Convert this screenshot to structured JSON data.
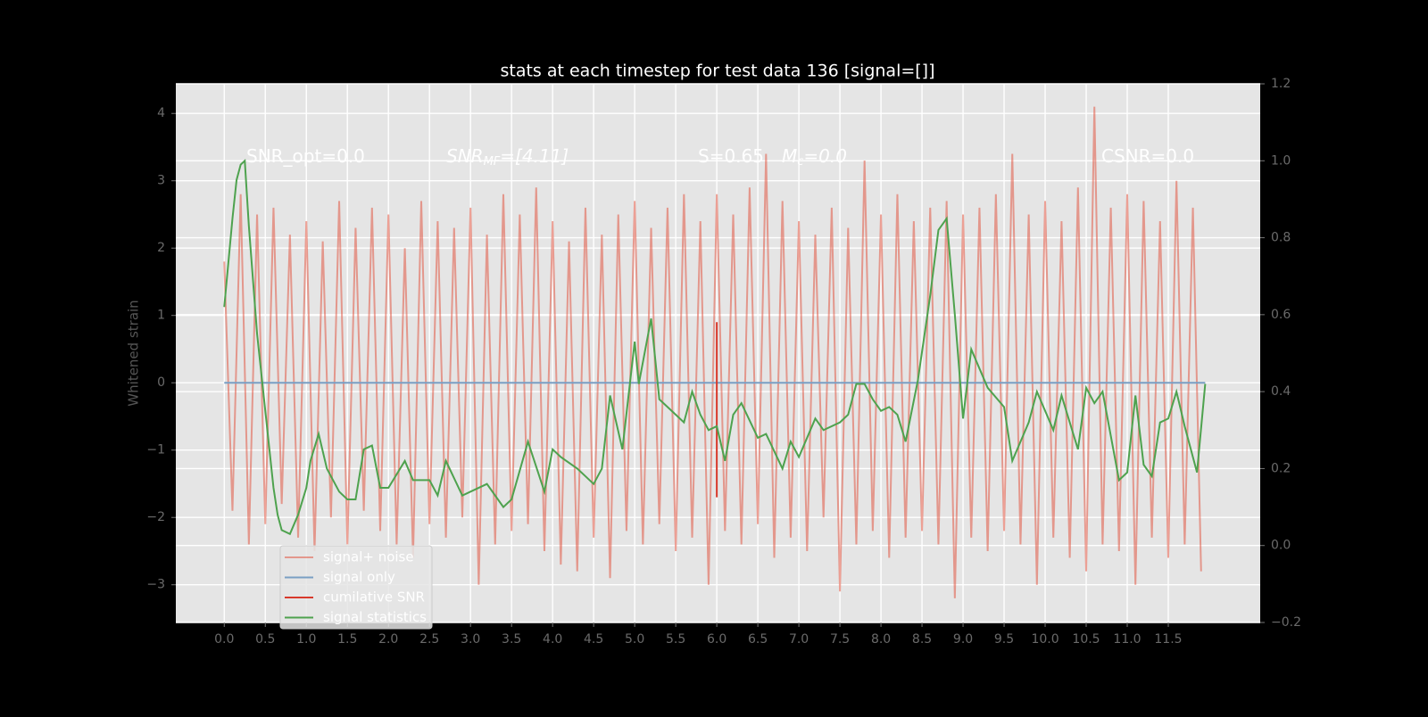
{
  "chart_data": {
    "type": "line",
    "title": "stats at each timestep for test data 136 [signal=[]]",
    "y_label": "Whitened strain",
    "annotations": [
      {
        "main": "SNR_opt=0.0"
      },
      {
        "main": "SNR",
        "sub": "MF",
        "after": "=[4.11]"
      },
      {
        "main": "S=0.65"
      },
      {
        "main": "M",
        "sub": "c",
        "after": "=0.0"
      },
      {
        "main": "CSNR=0.0"
      }
    ],
    "xlim": [
      -0.59,
      12.62
    ],
    "ylim": [
      -3.56,
      4.44
    ],
    "y2lim": [
      -0.2,
      1.2
    ],
    "xticks": [
      {
        "value": 0,
        "label": "0.0"
      },
      0.5,
      {
        "value": 1,
        "label": "1.0"
      },
      1.5,
      {
        "value": 2,
        "label": "2.0"
      },
      2.5,
      {
        "value": 3,
        "label": "3.0"
      },
      3.5,
      {
        "value": 4,
        "label": "4.0"
      },
      4.5,
      {
        "value": 5,
        "label": "5.0"
      },
      5.5,
      {
        "value": 6,
        "label": "6.0"
      },
      6.5,
      {
        "value": 7,
        "label": "7.0"
      },
      7.5,
      {
        "value": 8,
        "label": "8.0"
      },
      8.5,
      {
        "value": 9,
        "label": "9.0"
      },
      9.5,
      {
        "value": 10,
        "label": "10.0"
      },
      10.5,
      {
        "value": 11,
        "label": "11.0"
      },
      11.5
    ],
    "yticks": [
      {
        "value": -3,
        "label": "−3"
      },
      {
        "value": -2,
        "label": "−2"
      },
      {
        "value": -1,
        "label": "−1"
      },
      0,
      1,
      2,
      3,
      4
    ],
    "y2ticks": [
      {
        "value": -0.2,
        "label": "−0.2"
      },
      {
        "value": 0,
        "label": "0.0"
      },
      0.2,
      0.4,
      0.6,
      0.8,
      {
        "value": 1,
        "label": "1.0"
      },
      1.2
    ],
    "grid": true,
    "legend": "lower left",
    "series": [
      {
        "name": "signal+ noise",
        "color": "#e24a33",
        "x": [
          0.0,
          0.1,
          0.2,
          0.3,
          0.4,
          0.5,
          0.6,
          0.7,
          0.8,
          0.9,
          1.0,
          1.1,
          1.2,
          1.3,
          1.4,
          1.5,
          1.6,
          1.7,
          1.8,
          1.9,
          2.0,
          2.1,
          2.2,
          2.3,
          2.4,
          2.5,
          2.6,
          2.7,
          2.8,
          2.9,
          3.0,
          3.1,
          3.2,
          3.3,
          3.4,
          3.5,
          3.6,
          3.7,
          3.8,
          3.9,
          4.0,
          4.1,
          4.2,
          4.3,
          4.4,
          4.5,
          4.6,
          4.7,
          4.8,
          4.9,
          5.0,
          5.1,
          5.2,
          5.3,
          5.4,
          5.5,
          5.6,
          5.7,
          5.8,
          5.9,
          6.0,
          6.1,
          6.2,
          6.3,
          6.4,
          6.5,
          6.6,
          6.7,
          6.8,
          6.9,
          7.0,
          7.1,
          7.2,
          7.3,
          7.4,
          7.5,
          7.6,
          7.7,
          7.8,
          7.9,
          8.0,
          8.1,
          8.2,
          8.3,
          8.4,
          8.5,
          8.6,
          8.7,
          8.8,
          8.9,
          9.0,
          9.1,
          9.2,
          9.3,
          9.4,
          9.5,
          9.6,
          9.7,
          9.8,
          9.9,
          10.0,
          10.1,
          10.2,
          10.3,
          10.4,
          10.5,
          10.6,
          10.7,
          10.8,
          10.9,
          11.0,
          11.1,
          11.2,
          11.3,
          11.4,
          11.5,
          11.6,
          11.7,
          11.8,
          11.9
        ],
        "values": [
          1.8,
          -1.9,
          2.8,
          -2.4,
          2.5,
          -2.1,
          2.6,
          -1.8,
          2.2,
          -2.3,
          2.4,
          -2.5,
          2.1,
          -2.0,
          2.7,
          -2.4,
          2.3,
          -1.9,
          2.6,
          -2.2,
          2.5,
          -2.4,
          2.0,
          -2.6,
          2.7,
          -2.1,
          2.4,
          -2.3,
          2.3,
          -2.0,
          2.6,
          -3.0,
          2.2,
          -2.4,
          2.8,
          -2.2,
          2.5,
          -2.1,
          2.9,
          -2.5,
          2.4,
          -2.7,
          2.1,
          -2.8,
          2.6,
          -2.3,
          2.2,
          -2.9,
          2.5,
          -2.2,
          2.7,
          -2.4,
          2.3,
          -2.1,
          2.6,
          -2.5,
          2.8,
          -2.3,
          2.4,
          -3.0,
          2.8,
          -2.2,
          2.5,
          -2.4,
          2.9,
          -2.1,
          3.4,
          -2.6,
          2.7,
          -2.3,
          2.4,
          -2.5,
          2.2,
          -2.0,
          2.6,
          -3.1,
          2.3,
          -2.4,
          3.3,
          -2.2,
          2.5,
          -2.6,
          2.8,
          -2.3,
          2.4,
          -2.2,
          2.6,
          -2.4,
          2.7,
          -3.2,
          2.5,
          -2.3,
          2.6,
          -2.5,
          2.8,
          -2.2,
          3.4,
          -2.4,
          2.5,
          -3.0,
          2.7,
          -2.3,
          2.4,
          -2.6,
          2.9,
          -2.8,
          4.1,
          -2.4,
          2.6,
          -2.5,
          2.8,
          -3.0,
          2.7,
          -2.3,
          2.4,
          -2.6,
          3.0,
          -2.4,
          2.6,
          -2.8
        ]
      },
      {
        "name": "signal only",
        "color": "#7a9fc4",
        "x": [
          0.0,
          11.95
        ],
        "values": [
          0,
          0
        ]
      },
      {
        "name": "cumilative SNR",
        "color": "#d8392b",
        "x": [
          6.0,
          6.0
        ],
        "values": [
          0.9,
          -1.7
        ]
      },
      {
        "name": "signal statistics",
        "color": "#4ea24e",
        "axis": "y2",
        "x": [
          0.0,
          0.1,
          0.15,
          0.2,
          0.25,
          0.3,
          0.4,
          0.5,
          0.6,
          0.65,
          0.7,
          0.8,
          0.9,
          1.0,
          1.05,
          1.15,
          1.25,
          1.4,
          1.5,
          1.6,
          1.7,
          1.8,
          1.9,
          2.0,
          2.2,
          2.3,
          2.5,
          2.6,
          2.7,
          2.9,
          3.0,
          3.2,
          3.4,
          3.5,
          3.7,
          3.9,
          4.0,
          4.1,
          4.3,
          4.5,
          4.6,
          4.7,
          4.85,
          5.0,
          5.05,
          5.2,
          5.3,
          5.4,
          5.6,
          5.7,
          5.8,
          5.9,
          6.0,
          6.1,
          6.2,
          6.3,
          6.5,
          6.6,
          6.8,
          6.9,
          7.0,
          7.2,
          7.3,
          7.5,
          7.6,
          7.7,
          7.8,
          7.9,
          8.0,
          8.1,
          8.2,
          8.3,
          8.45,
          8.6,
          8.7,
          8.8,
          8.9,
          9.0,
          9.1,
          9.3,
          9.5,
          9.6,
          9.8,
          9.9,
          10.1,
          10.2,
          10.4,
          10.5,
          10.6,
          10.7,
          10.9,
          11.0,
          11.1,
          11.2,
          11.3,
          11.4,
          11.5,
          11.6,
          11.7,
          11.75,
          11.85,
          11.95
        ],
        "values": [
          0.62,
          0.85,
          0.95,
          0.99,
          1.0,
          0.83,
          0.55,
          0.35,
          0.15,
          0.08,
          0.04,
          0.03,
          0.08,
          0.15,
          0.22,
          0.29,
          0.2,
          0.14,
          0.12,
          0.12,
          0.25,
          0.26,
          0.15,
          0.15,
          0.22,
          0.17,
          0.17,
          0.13,
          0.22,
          0.13,
          0.14,
          0.16,
          0.1,
          0.12,
          0.27,
          0.14,
          0.25,
          0.23,
          0.2,
          0.16,
          0.2,
          0.39,
          0.25,
          0.53,
          0.42,
          0.59,
          0.38,
          0.36,
          0.32,
          0.4,
          0.34,
          0.3,
          0.31,
          0.22,
          0.34,
          0.37,
          0.28,
          0.29,
          0.2,
          0.27,
          0.23,
          0.33,
          0.3,
          0.32,
          0.34,
          0.42,
          0.42,
          0.38,
          0.35,
          0.36,
          0.34,
          0.27,
          0.43,
          0.65,
          0.82,
          0.85,
          0.6,
          0.33,
          0.51,
          0.41,
          0.36,
          0.22,
          0.32,
          0.4,
          0.3,
          0.39,
          0.25,
          0.41,
          0.37,
          0.4,
          0.17,
          0.19,
          0.39,
          0.21,
          0.18,
          0.32,
          0.33,
          0.4,
          0.31,
          0.27,
          0.19,
          0.42
        ]
      }
    ]
  }
}
